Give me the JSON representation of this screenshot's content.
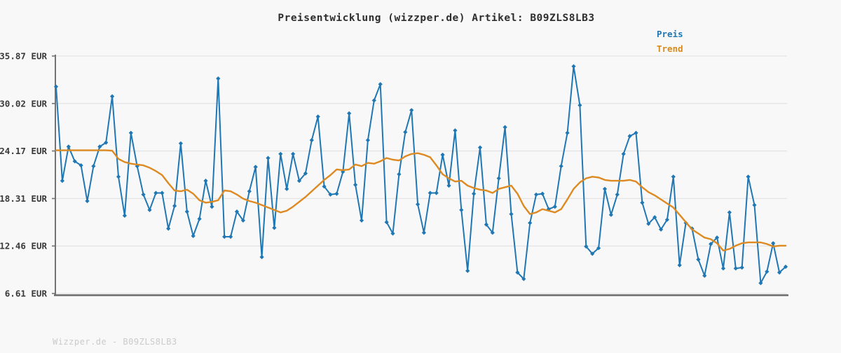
{
  "title": "Preisentwicklung (wizzper.de) Artikel: B09ZLS8LB3",
  "legend": {
    "preis_label": "Preis",
    "trend_label": "Trend"
  },
  "footer": "Wizzper.de - B09ZLS8LB3",
  "colors": {
    "preis": "#1f77b4",
    "trend": "#dd8a22",
    "grid": "#e4e4e4",
    "spine": "#737373",
    "tick_label": "#3a3a3a",
    "footer_text": "#cbcbcb",
    "background": "#f8f8f8"
  },
  "chart_data": {
    "type": "line",
    "title": "Preisentwicklung (wizzper.de) Artikel: B09ZLS8LB3",
    "xlabel": "",
    "ylabel": "EUR",
    "x_tick_labels": [],
    "grid": true,
    "legend_position": "top-right",
    "ylim": [
      6.61,
      35.87
    ],
    "y_tick_values": [
      35.87,
      30.02,
      24.17,
      18.31,
      12.46,
      6.61
    ],
    "y_tick_labels": [
      "35.87 EUR",
      "30.02 EUR",
      "24.17 EUR",
      "18.31 EUR",
      "12.46 EUR",
      "6.61 EUR"
    ],
    "series": [
      {
        "name": "Preis",
        "color": "#1f77b4",
        "marker": "diamond",
        "values": [
          32.1,
          20.5,
          24.7,
          22.9,
          22.4,
          18.0,
          22.3,
          24.7,
          25.2,
          30.9,
          21.0,
          16.2,
          26.4,
          22.3,
          18.8,
          16.9,
          19.0,
          19.0,
          14.6,
          17.4,
          25.1,
          16.7,
          13.7,
          15.8,
          20.5,
          17.3,
          33.1,
          13.6,
          13.6,
          16.7,
          15.6,
          19.2,
          22.2,
          11.1,
          23.3,
          14.7,
          23.8,
          19.5,
          23.8,
          20.5,
          21.4,
          25.5,
          28.4,
          19.8,
          18.8,
          18.9,
          21.6,
          28.8,
          20.0,
          15.6,
          25.5,
          30.4,
          32.4,
          15.4,
          14.0,
          21.3,
          26.5,
          29.2,
          17.6,
          14.1,
          19.0,
          19.0,
          23.7,
          19.9,
          26.7,
          16.9,
          9.4,
          18.9,
          24.6,
          15.1,
          14.1,
          20.8,
          27.1,
          16.4,
          9.2,
          8.4,
          15.3,
          18.8,
          18.9,
          17.0,
          17.3,
          22.3,
          26.4,
          34.6,
          29.8,
          12.4,
          11.5,
          12.2,
          19.5,
          16.3,
          18.8,
          23.8,
          26.0,
          26.4,
          17.8,
          15.2,
          16.0,
          14.5,
          15.7,
          21.0,
          10.1,
          15.3,
          14.6,
          10.8,
          8.8,
          12.7,
          13.5,
          9.7,
          16.6,
          9.7,
          9.8,
          21.0,
          17.5,
          7.9,
          9.3,
          12.8,
          9.2,
          9.9
        ]
      },
      {
        "name": "Trend",
        "color": "#dd8a22",
        "marker": null,
        "values": [
          24.25,
          24.25,
          24.25,
          24.25,
          24.25,
          24.25,
          24.25,
          24.25,
          24.25,
          24.2,
          23.2,
          22.8,
          22.6,
          22.5,
          22.4,
          22.1,
          21.7,
          21.2,
          20.2,
          19.3,
          19.2,
          19.4,
          18.9,
          18.1,
          17.8,
          17.9,
          18.1,
          19.3,
          19.2,
          18.8,
          18.3,
          18.0,
          17.8,
          17.5,
          17.2,
          16.9,
          16.6,
          16.8,
          17.3,
          17.9,
          18.5,
          19.2,
          19.9,
          20.6,
          21.2,
          21.9,
          21.8,
          21.9,
          22.5,
          22.3,
          22.7,
          22.6,
          22.9,
          23.3,
          23.1,
          23.0,
          23.5,
          23.8,
          23.9,
          23.7,
          23.4,
          22.4,
          21.3,
          20.8,
          20.4,
          20.5,
          19.9,
          19.6,
          19.4,
          19.3,
          19.0,
          19.5,
          19.7,
          19.9,
          18.9,
          17.4,
          16.4,
          16.6,
          17.0,
          16.8,
          16.6,
          17.0,
          18.2,
          19.5,
          20.3,
          20.8,
          21.0,
          20.9,
          20.6,
          20.5,
          20.5,
          20.5,
          20.6,
          20.4,
          19.7,
          19.1,
          18.7,
          18.2,
          17.7,
          17.2,
          16.3,
          15.4,
          14.5,
          14.0,
          13.5,
          13.3,
          12.8,
          11.9,
          12.1,
          12.5,
          12.8,
          12.9,
          12.9,
          12.9,
          12.7,
          12.4,
          12.5,
          12.5
        ]
      }
    ]
  }
}
